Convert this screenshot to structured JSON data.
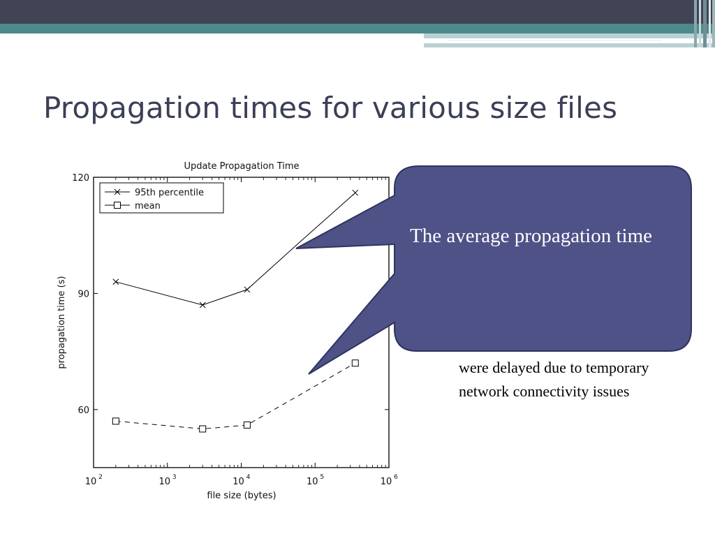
{
  "slide": {
    "title": "Propagation times for various size files"
  },
  "callout": {
    "text": "The average propagation time"
  },
  "note": {
    "text": "were delayed due to temporary network connectivity issues"
  },
  "colors": {
    "header_dark": "#414455",
    "header_teal": "#4e8a8c",
    "header_light": "#b9d1d4",
    "title_text": "#3b3f57",
    "callout_fill": "#4e5287",
    "callout_border": "#2f335f"
  },
  "chart_data": {
    "type": "line",
    "title": "Update Propagation Time",
    "xlabel": "file size (bytes)",
    "ylabel": "propagation time (s)",
    "x_scale": "log",
    "xlim": [
      100,
      1000000
    ],
    "ylim": [
      45,
      120
    ],
    "x_ticks": [
      {
        "value": 100,
        "base": "10",
        "exp": "2"
      },
      {
        "value": 1000,
        "base": "10",
        "exp": "3"
      },
      {
        "value": 10000,
        "base": "10",
        "exp": "4"
      },
      {
        "value": 100000,
        "base": "10",
        "exp": "5"
      },
      {
        "value": 1000000,
        "base": "10",
        "exp": "6"
      }
    ],
    "y_ticks": [
      "60",
      "90",
      "120"
    ],
    "legend_position": "top-left",
    "grid": false,
    "series": [
      {
        "name": "95th percentile",
        "marker": "x",
        "line": "solid",
        "x": [
          200,
          3000,
          12000,
          60000,
          350000
        ],
        "y": [
          93,
          87,
          91,
          103,
          116
        ]
      },
      {
        "name": "mean",
        "marker": "square",
        "line": "dashed",
        "x": [
          200,
          3000,
          12000,
          350000
        ],
        "y": [
          57,
          55,
          56,
          72
        ]
      }
    ]
  }
}
